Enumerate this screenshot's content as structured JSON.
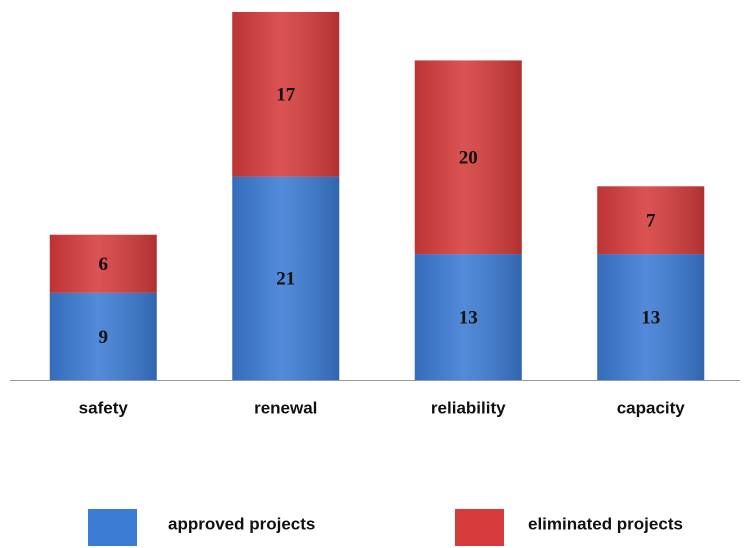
{
  "chart_data": {
    "type": "stacked-bar",
    "categories": [
      "safety",
      "renewal",
      "reliability",
      "capacity"
    ],
    "series": [
      {
        "name": "approved projects",
        "color": "#3b7bd4",
        "values": [
          9,
          21,
          13,
          13
        ]
      },
      {
        "name": "eliminated projects",
        "color": "#d63b3b",
        "values": [
          6,
          17,
          20,
          7
        ]
      }
    ],
    "legend": "bottom"
  }
}
